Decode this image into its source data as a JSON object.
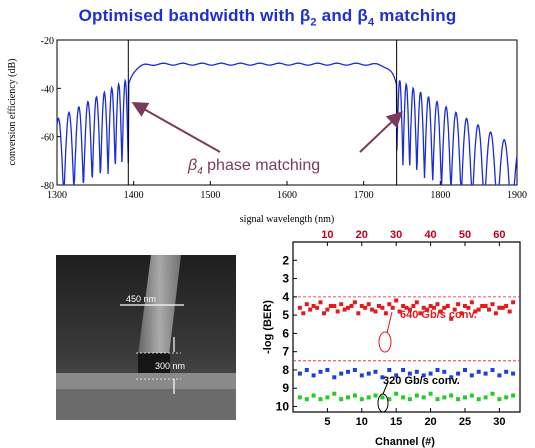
{
  "title": {
    "text": "Optimised bandwidth with β2 and β4 matching"
  },
  "chart_data": [
    {
      "type": "line",
      "title": "Optimised bandwidth with β2 and β4 matching",
      "xlabel": "signal wavelength (nm)",
      "ylabel": "conversion efficiency (dB)",
      "xlim": [
        1300,
        1900
      ],
      "ylim": [
        -80,
        -20
      ],
      "xticks": [
        "1300",
        "1400",
        "1500",
        "1600",
        "1700",
        "1800",
        "1900"
      ],
      "yticks": [
        "-20",
        "-40",
        "-60",
        "-80"
      ],
      "annotation": "β4 phase matching",
      "markers": [
        1393,
        1743
      ],
      "series": [
        {
          "values": {
            "flat_top_db": -30,
            "band_edges_nm": [
              1393,
              1743
            ],
            "sidelobe_floor_db": -80
          }
        }
      ],
      "line_color": "#1a2bd8",
      "annotation_color": "#7a3a5c"
    },
    {
      "type": "scatter",
      "xlabel": "Channel (#)",
      "ylabel": "-log (BER)",
      "xticks_bottom": [
        "5",
        "10",
        "15",
        "20",
        "25",
        "30"
      ],
      "xticks_top": [
        "10",
        "20",
        "30",
        "40",
        "50",
        "60"
      ],
      "yticks": [
        "2",
        "3",
        "4",
        "5",
        "6",
        "7",
        "8",
        "9",
        "10"
      ],
      "ylim": [
        1,
        10.3
      ],
      "xlim": [
        0,
        33
      ],
      "annotations": [
        "640 Gb/s conv.",
        "320 Gb/s conv."
      ],
      "reference_lines": [
        4,
        7.5
      ],
      "series": [
        {
          "color": "#e41a1c",
          "x": [
            1,
            2,
            3,
            4,
            5,
            6,
            7,
            8,
            9,
            10,
            11,
            12,
            13,
            14,
            15,
            16,
            17,
            18,
            19,
            20,
            21,
            22,
            23,
            24,
            25,
            26,
            27,
            28,
            29,
            30,
            31,
            32
          ],
          "y": [
            4.6,
            4.4,
            4.5,
            4.3,
            4.7,
            4.5,
            4.4,
            4.6,
            4.3,
            4.5,
            4.4,
            4.8,
            4.6,
            4.4,
            4.2,
            4.5,
            4.7,
            4.3,
            4.6,
            4.5,
            4.4,
            4.6,
            5.2,
            4.4,
            4.5,
            4.3,
            4.7,
            4.5,
            4.4,
            4.6,
            4.5,
            4.3
          ]
        },
        {
          "color": "#e41a1c",
          "x": [
            1.5,
            2.5,
            3.5,
            4.5,
            5.5,
            6.5,
            7.5,
            8.5,
            9.5,
            10.5,
            11.5,
            12.5,
            13.5,
            14.5,
            15.5,
            16.5,
            17.5,
            18.5,
            19.5,
            20.5,
            21.5,
            22.5,
            23.5,
            24.5,
            25.5,
            26.5,
            27.5,
            28.5,
            29.5,
            30.5,
            31.5
          ],
          "y": [
            4.9,
            4.7,
            4.6,
            4.9,
            4.5,
            4.8,
            4.7,
            4.5,
            4.9,
            4.6,
            4.7,
            4.5,
            4.9,
            4.6,
            4.8,
            4.6,
            4.5,
            4.9,
            4.7,
            4.6,
            4.8,
            4.5,
            4.7,
            4.9,
            4.6,
            4.8,
            4.5,
            4.7,
            4.9,
            4.6,
            4.8
          ]
        },
        {
          "color": "#1f3fd8",
          "x": [
            1,
            2,
            3,
            4,
            5,
            6,
            7,
            8,
            9,
            10,
            11,
            12,
            13,
            14,
            15,
            16,
            17,
            18,
            19,
            20,
            21,
            22,
            23,
            24,
            25,
            26,
            27,
            28,
            29,
            30,
            31,
            32
          ],
          "y": [
            8.2,
            8.0,
            8.3,
            8.1,
            8.0,
            8.4,
            8.2,
            8.1,
            8.0,
            8.3,
            8.2,
            8.1,
            8.4,
            8.0,
            8.3,
            8.0,
            8.2,
            8.1,
            8.3,
            8.2,
            8.0,
            8.1,
            8.4,
            8.2,
            8.0,
            8.3,
            8.1,
            8.2,
            8.0,
            8.3,
            8.1,
            8.2
          ]
        },
        {
          "color": "#22cc22",
          "x": [
            1,
            2,
            3,
            4,
            5,
            6,
            7,
            8,
            9,
            10,
            11,
            12,
            13,
            14,
            15,
            16,
            17,
            18,
            19,
            20,
            21,
            22,
            23,
            24,
            25,
            26,
            27,
            28,
            29,
            30,
            31,
            32
          ],
          "y": [
            9.5,
            9.6,
            9.4,
            9.6,
            9.5,
            9.3,
            9.6,
            9.5,
            9.4,
            9.6,
            9.5,
            9.4,
            9.5,
            9.6,
            9.3,
            9.5,
            9.6,
            9.4,
            9.5,
            9.3,
            9.6,
            9.5,
            9.4,
            9.6,
            9.5,
            9.4,
            9.6,
            9.5,
            9.3,
            9.6,
            9.5,
            9.4
          ]
        }
      ]
    }
  ],
  "sem": {
    "width_label": "450 nm",
    "height_label": "300 nm"
  }
}
